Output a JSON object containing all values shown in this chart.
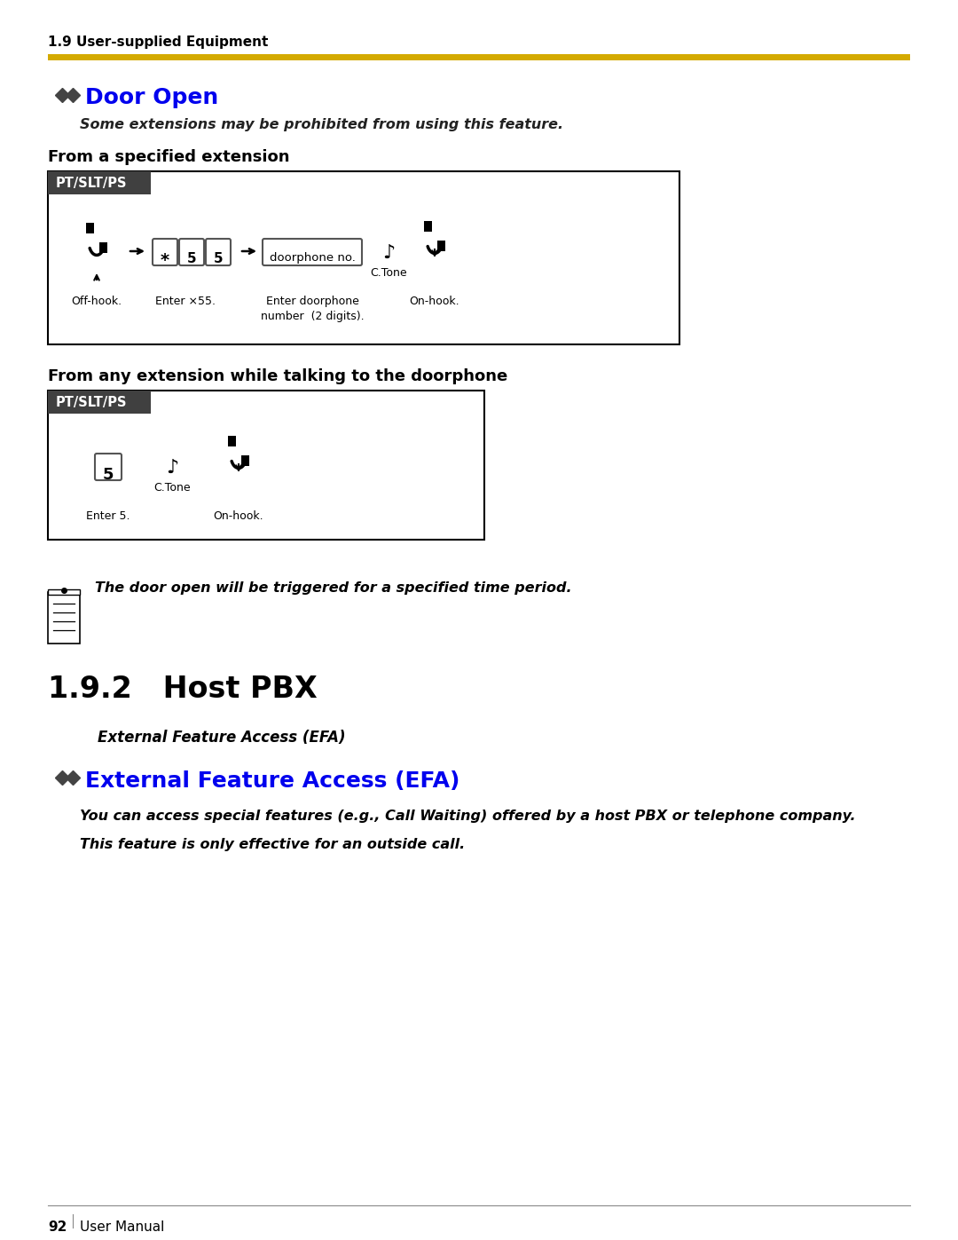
{
  "bg_color": "#ffffff",
  "header_text": "1.9 User-supplied Equipment",
  "header_bar_color": "#D4AA00",
  "door_open_title": "Door Open",
  "door_open_color": "#0000EE",
  "diamond_color": "#555555",
  "subtitle_italic": "Some extensions may be prohibited from using this feature.",
  "section1_title": "From a specified extension",
  "section2_title": "From any extension while talking to the doorphone",
  "pt_label": "PT/SLT/PS",
  "pt_bg": "#404040",
  "pt_text_color": "#ffffff",
  "note_text": "The door open will be triggered for a specified time period.",
  "section3_title": "1.9.2   Host PBX",
  "efa_italic": "External Feature Access (EFA)",
  "efa_title": "External Feature Access (EFA)",
  "efa_title_color": "#0000EE",
  "efa_desc1": "You can access special features (e.g., Call Waiting) offered by a host PBX or telephone company.",
  "efa_desc2": "This feature is only effective for an outside call.",
  "page_number": "92",
  "page_label": "User Manual",
  "ctone_label": "C.Tone",
  "enter_star55": "Enter ×55.",
  "enter_doorphone": "Enter doorphone\nnumber  (2 digits).",
  "off_hook": "Off-hook.",
  "on_hook": "On-hook.",
  "enter5": "Enter 5."
}
